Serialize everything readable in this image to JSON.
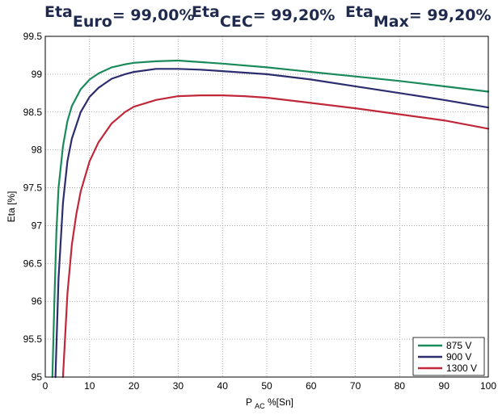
{
  "header": {
    "items": [
      {
        "base": "Eta",
        "sub": "Euro",
        "value": "= 99,00%"
      },
      {
        "base": "Eta",
        "sub": "CEC",
        "value": "= 99,20%"
      },
      {
        "base": "Eta",
        "sub": "Max",
        "value": "= 99,20%"
      }
    ]
  },
  "chart_data": {
    "type": "line",
    "ylabel": "Eta [%]",
    "xlabel_main": "P",
    "xlabel_sub": "AC",
    "xlabel_rest": " %[Sn]",
    "xlim": [
      0,
      100
    ],
    "ylim": [
      95,
      99.5
    ],
    "xticks": [
      0,
      10,
      20,
      30,
      40,
      50,
      60,
      70,
      80,
      90,
      100
    ],
    "yticks": [
      95,
      95.5,
      96,
      96.5,
      97,
      97.5,
      98,
      98.5,
      99,
      99.5
    ],
    "grid": true,
    "legend_position": "bottom-right",
    "series": [
      {
        "name": "875 V",
        "color": "#1a8a5a",
        "x": [
          1.6,
          2,
          2.5,
          3,
          4,
          5,
          6,
          8,
          10,
          12,
          15,
          18,
          20,
          25,
          30,
          35,
          40,
          50,
          60,
          70,
          80,
          90,
          100
        ],
        "y": [
          95,
          95.9,
          96.9,
          97.5,
          98.05,
          98.38,
          98.58,
          98.8,
          98.93,
          99.01,
          99.09,
          99.13,
          99.15,
          99.17,
          99.18,
          99.16,
          99.14,
          99.09,
          99.03,
          98.97,
          98.91,
          98.84,
          98.77
        ]
      },
      {
        "name": "900 V",
        "color": "#2b2d6e",
        "x": [
          2.3,
          3,
          4,
          5,
          6,
          8,
          10,
          12,
          15,
          18,
          20,
          25,
          30,
          35,
          40,
          50,
          60,
          70,
          80,
          90,
          100
        ],
        "y": [
          95,
          96.3,
          97.3,
          97.85,
          98.15,
          98.5,
          98.7,
          98.82,
          98.94,
          99.0,
          99.03,
          99.07,
          99.07,
          99.06,
          99.04,
          99.0,
          98.93,
          98.84,
          98.75,
          98.66,
          98.56
        ]
      },
      {
        "name": "1300 V",
        "color": "#c0283a",
        "x": [
          4,
          5,
          6,
          7,
          8,
          10,
          12,
          15,
          18,
          20,
          25,
          30,
          35,
          40,
          45,
          50,
          60,
          70,
          80,
          90,
          100
        ],
        "y": [
          95,
          96.1,
          96.75,
          97.15,
          97.45,
          97.85,
          98.1,
          98.35,
          98.5,
          98.57,
          98.66,
          98.71,
          98.72,
          98.72,
          98.71,
          98.69,
          98.62,
          98.55,
          98.47,
          98.39,
          98.28
        ]
      }
    ]
  }
}
